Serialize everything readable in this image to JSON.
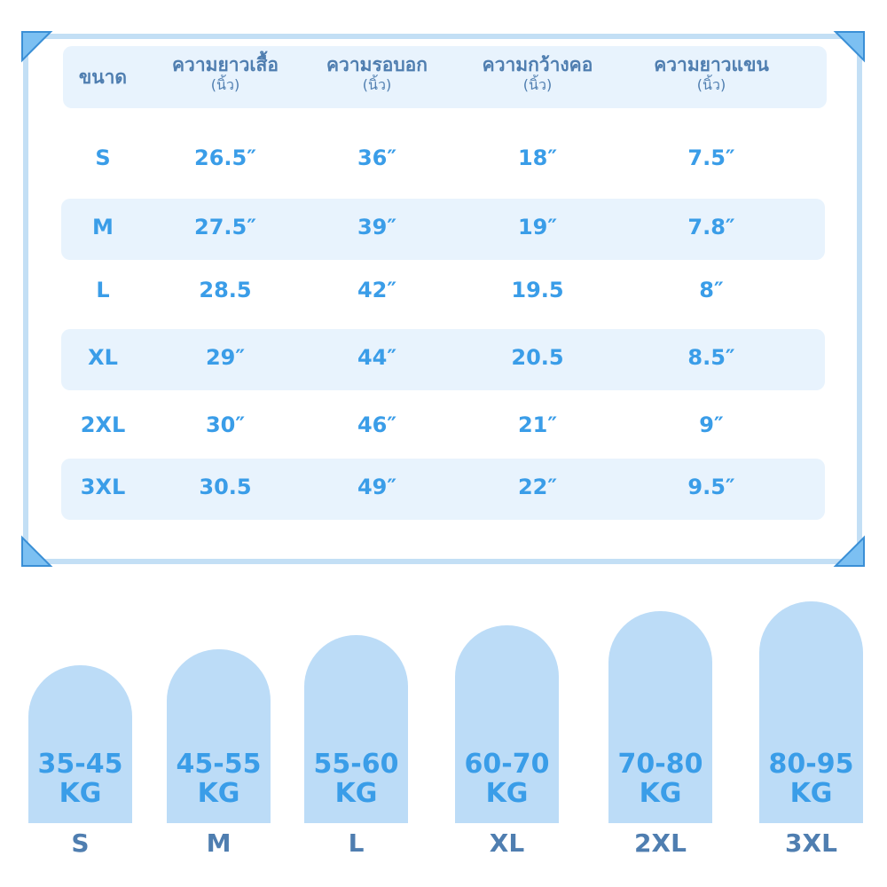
{
  "table": {
    "headers": [
      {
        "title": "ขนาด"
      },
      {
        "title": "ความยาวเสื้อ",
        "unit": "(นิ้ว)"
      },
      {
        "title": "ความรอบอก",
        "unit": "(นิ้ว)"
      },
      {
        "title": "ความกว้างคอ",
        "unit": "(นิ้ว)"
      },
      {
        "title": "ความยาวแขน",
        "unit": "(นิ้ว)"
      }
    ],
    "rows": [
      [
        "S",
        "26.5″",
        "36″",
        "18″",
        "7.5″"
      ],
      [
        "M",
        "27.5″",
        "39″",
        "19″",
        "7.8″"
      ],
      [
        "L",
        "28.5",
        "42″",
        "19.5",
        "8″"
      ],
      [
        "XL",
        "29″",
        "44″",
        "20.5",
        "8.5″"
      ],
      [
        "2XL",
        "30″",
        "46″",
        "21″",
        "9″"
      ],
      [
        "3XL",
        "30.5",
        "49″",
        "22″",
        "9.5″"
      ]
    ]
  },
  "weights": [
    {
      "range": "35-45",
      "unit": "KG",
      "size": "S"
    },
    {
      "range": "45-55",
      "unit": "KG",
      "size": "M"
    },
    {
      "range": "55-60",
      "unit": "KG",
      "size": "L"
    },
    {
      "range": "60-70",
      "unit": "KG",
      "size": "XL"
    },
    {
      "range": "70-80",
      "unit": "KG",
      "size": "2XL"
    },
    {
      "range": "80-95",
      "unit": "KG",
      "size": "3XL"
    }
  ]
}
